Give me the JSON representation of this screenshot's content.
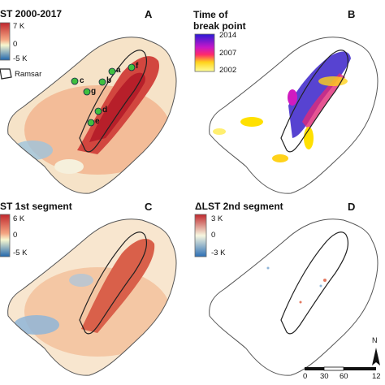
{
  "panels": {
    "a": {
      "title": "ST 2000-2017",
      "letter": "A",
      "legend": {
        "max": "7 K",
        "mid": "0",
        "min": "-5 K",
        "ramsar": "Ramsar"
      },
      "colors": [
        "#c0272d",
        "#f4a582",
        "#f7f7d0",
        "#2166ac"
      ]
    },
    "b": {
      "title_line1": "Time of",
      "title_line2": "break point",
      "letter": "B",
      "legend": {
        "top": "2014",
        "mid": "2007",
        "bottom": "2002"
      },
      "colors": [
        "#2a1bd6",
        "#c617c9",
        "#ff2a6a",
        "#ffd21a",
        "#ffff99"
      ]
    },
    "c": {
      "title": "ST 1st segment",
      "letter": "C",
      "legend": {
        "max": "6 K",
        "mid": "0",
        "min": "-5 K"
      }
    },
    "d": {
      "title": "ΔLST 2nd segment",
      "letter": "D",
      "legend": {
        "max": "3 K",
        "mid": "0",
        "min": "-3 K"
      },
      "colors": [
        "#c0272d",
        "#f7f7e0",
        "#2c6fb5"
      ]
    }
  },
  "sample_points": [
    "a",
    "b",
    "c",
    "d",
    "e",
    "f",
    "g"
  ],
  "map_furniture": {
    "north": "N",
    "scale_ticks": [
      "0",
      "30",
      "60",
      "12"
    ]
  }
}
